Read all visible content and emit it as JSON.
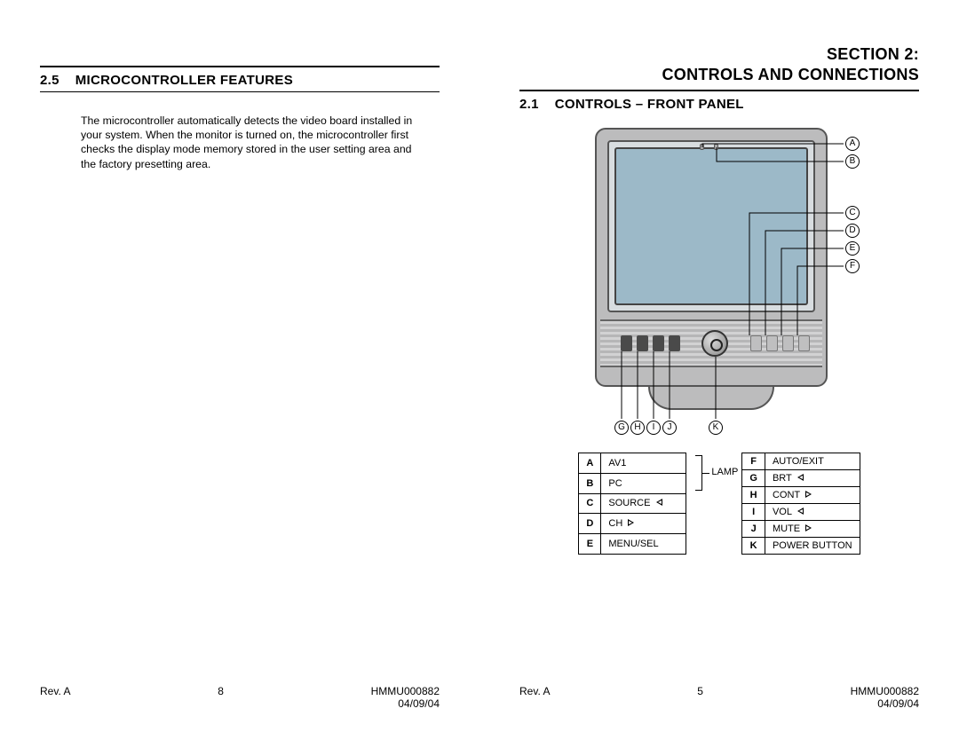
{
  "left_page": {
    "heading_num": "2.5",
    "heading_text": "MICROCONTROLLER FEATURES",
    "body": "The microcontroller automatically detects the video board installed in your system.  When the monitor is turned on, the microcontroller first checks the display mode memory stored in the user setting area and the factory presetting area.",
    "footer": {
      "rev": "Rev. A",
      "page": "8",
      "doc": "HMMU000882",
      "date": "04/09/04"
    }
  },
  "right_page": {
    "section_title_l1": "SECTION 2:",
    "section_title_l2": "CONTROLS AND CONNECTIONS",
    "heading_num": "2.1",
    "heading_text": "CONTROLS – FRONT PANEL",
    "callouts_right": [
      "A",
      "B",
      "C",
      "D",
      "E",
      "F"
    ],
    "callouts_bottom": [
      "G",
      "H",
      "I",
      "J",
      "K"
    ],
    "lamp_label": "LAMP",
    "legend_left": [
      {
        "k": "A",
        "v": "AV1",
        "tri": ""
      },
      {
        "k": "B",
        "v": "PC",
        "tri": ""
      },
      {
        "k": "C",
        "v": "SOURCE",
        "tri": "ol"
      },
      {
        "k": "D",
        "v": "CH",
        "tri": "or"
      },
      {
        "k": "E",
        "v": "MENU/SEL",
        "tri": ""
      }
    ],
    "legend_right": [
      {
        "k": "F",
        "v": "AUTO/EXIT",
        "tri": ""
      },
      {
        "k": "G",
        "v": "BRT",
        "tri": "ol"
      },
      {
        "k": "H",
        "v": "CONT",
        "tri": "or"
      },
      {
        "k": "I",
        "v": "VOL",
        "tri": "ol"
      },
      {
        "k": "J",
        "v": "MUTE",
        "tri": "or"
      },
      {
        "k": "K",
        "v": "POWER BUTTON",
        "tri": ""
      }
    ],
    "footer": {
      "rev": "Rev. A",
      "page": "5",
      "doc": "HMMU000882",
      "date": "04/09/04"
    }
  },
  "colors": {
    "bezel": "#bcbcbd",
    "bezel_inner": "#d8dde0",
    "screen": "#9cb9c8",
    "stroke": "#555555"
  }
}
